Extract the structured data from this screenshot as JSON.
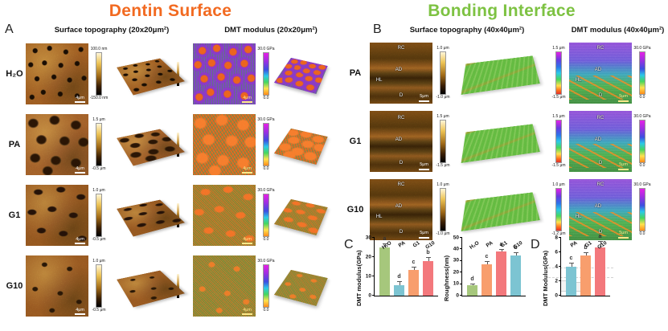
{
  "header": {
    "left_title": "Dentin Surface",
    "right_title": "Bonding Interface",
    "left_color": "#f26a21",
    "right_color": "#7dc242"
  },
  "panelA": {
    "label": "A",
    "topo_header": "Surface topography (20x20μm²)",
    "dmt_header": "DMT modulus (20x20μm²)",
    "dmt_scale_top": "30.0 GPa",
    "dmt_scale_bottom": "0.0",
    "rows": [
      {
        "label": "H₂O",
        "scale_top": "100.0 nm",
        "scale_bottom": "-150.0 nm",
        "scalebar": "4μm"
      },
      {
        "label": "PA",
        "scale_top": "1.5 μm",
        "scale_bottom": "-0.5 μm",
        "scalebar": "4μm"
      },
      {
        "label": "G1",
        "scale_top": "1.0 μm",
        "scale_bottom": "-0.5 μm",
        "scalebar": "4μm"
      },
      {
        "label": "G10",
        "scale_top": "1.0 μm",
        "scale_bottom": "-0.5 μm",
        "scalebar": "4μm"
      }
    ]
  },
  "panelB": {
    "label": "B",
    "topo_header": "Surface topography (40x40μm²)",
    "dmt_header": "DMT modulus (40x40μm²)",
    "dmt_scale_top": "30.0 GPa",
    "dmt_scale_bottom": "0.0",
    "rows": [
      {
        "label": "PA",
        "regions": [
          "RC",
          "AD",
          "HL",
          "D"
        ],
        "scalebar": "5μm",
        "scale_top": "1.0 μm",
        "scale_bottom": "-1.0 μm",
        "scale3d_top": "1.5 μm",
        "scale3d_bottom": "-1.5 μm"
      },
      {
        "label": "G1",
        "regions": [
          "RC",
          "AD",
          "D"
        ],
        "scalebar": "5μm",
        "scale_top": "1.5 μm",
        "scale_bottom": "-1.5 μm",
        "scale3d_top": "1.5 μm",
        "scale3d_bottom": "-1.5 μm"
      },
      {
        "label": "G10",
        "regions": [
          "RC",
          "AD",
          "HL",
          "D"
        ],
        "scalebar": "5μm",
        "scale_top": "1.0 μm",
        "scale_bottom": "-1.0 μm",
        "scale3d_top": "1.0 μm",
        "scale3d_bottom": "-1.2 μm"
      }
    ]
  },
  "panelC_label": "C",
  "panelD_label": "D",
  "chart_data": [
    {
      "type": "bar",
      "panel": "C",
      "title": "",
      "ylabel": "DMT modulus(GPa)",
      "xlabel": "",
      "ylim": [
        0,
        30
      ],
      "yticks": [
        0,
        10,
        20,
        30
      ],
      "categories": [
        "H₂O",
        "PA",
        "G1",
        "G10"
      ],
      "values": [
        25,
        5.5,
        13.5,
        17.8
      ],
      "errors": [
        1.5,
        1.5,
        1.0,
        1.8
      ],
      "sig_letters": [
        "a",
        "d",
        "c",
        "b"
      ],
      "bar_colors": [
        "#a6c77c",
        "#7cc4d2",
        "#f89e6d",
        "#f3787c"
      ],
      "grid": false,
      "legend": "none"
    },
    {
      "type": "bar",
      "panel": "C",
      "title": "",
      "ylabel": "Roughness(nm)",
      "xlabel": "",
      "ylim": [
        0,
        50
      ],
      "yticks": [
        0,
        10,
        20,
        30,
        40,
        50
      ],
      "categories": [
        "H₂O",
        "PA",
        "G1",
        "G10"
      ],
      "values": [
        9,
        27,
        38,
        35
      ],
      "errors": [
        1.0,
        2.0,
        1.5,
        2.0
      ],
      "sig_letters": [
        "d",
        "c",
        "a",
        "b"
      ],
      "bar_colors": [
        "#a6c77c",
        "#f89e6d",
        "#f3787c",
        "#7cc4d2"
      ],
      "grid": false,
      "legend": "none"
    },
    {
      "type": "bar",
      "panel": "D",
      "title": "",
      "ylabel": "DMT Modulus(GPa)",
      "xlabel": "",
      "ylim": [
        0,
        8
      ],
      "yticks": [
        0,
        2,
        4,
        6,
        8
      ],
      "categories": [
        "PA",
        "G1",
        "G10"
      ],
      "values": [
        4.0,
        5.6,
        6.7
      ],
      "errors": [
        0.5,
        0.3,
        0.8
      ],
      "sig_letters": [
        "c",
        "b",
        "a"
      ],
      "bar_colors": [
        "#7cc4d2",
        "#f89e6d",
        "#f3787c"
      ],
      "grid": false,
      "legend": "none"
    }
  ]
}
